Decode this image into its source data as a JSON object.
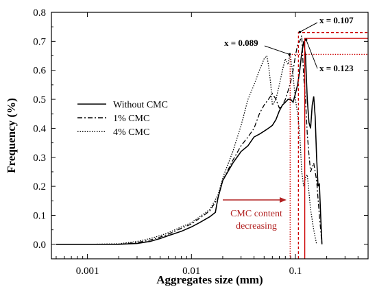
{
  "chart_data": {
    "type": "line",
    "xlabel": "Aggregates size (mm)",
    "ylabel": "Frequency (%)",
    "xscale": "log",
    "xlim": [
      0.00045,
      0.5
    ],
    "ylim": [
      -0.05,
      0.8
    ],
    "x_ticks": [
      {
        "value": 0.001,
        "label": "0.001"
      },
      {
        "value": 0.01,
        "label": "0.01"
      },
      {
        "value": 0.1,
        "label": "0.1"
      }
    ],
    "y_ticks": [
      {
        "value": 0.0,
        "label": "0.0"
      },
      {
        "value": 0.1,
        "label": "0.1"
      },
      {
        "value": 0.2,
        "label": "0.2"
      },
      {
        "value": 0.3,
        "label": "0.3"
      },
      {
        "value": 0.4,
        "label": "0.4"
      },
      {
        "value": 0.5,
        "label": "0.5"
      },
      {
        "value": 0.6,
        "label": "0.6"
      },
      {
        "value": 0.7,
        "label": "0.7"
      },
      {
        "value": 0.8,
        "label": "0.8"
      }
    ],
    "legend_position": "center-left",
    "series": [
      {
        "name": "Without CMC",
        "style": "solid",
        "x": [
          0.0005,
          0.001,
          0.002,
          0.003,
          0.004,
          0.005,
          0.006,
          0.008,
          0.01,
          0.012,
          0.015,
          0.017,
          0.018,
          0.02,
          0.025,
          0.03,
          0.035,
          0.04,
          0.045,
          0.05,
          0.055,
          0.06,
          0.065,
          0.07,
          0.075,
          0.08,
          0.085,
          0.09,
          0.095,
          0.1,
          0.105,
          0.11,
          0.115,
          0.12,
          0.125,
          0.13,
          0.135,
          0.14,
          0.145,
          0.15,
          0.155,
          0.16,
          0.165,
          0.17,
          0.175,
          0.18
        ],
        "values": [
          0.0,
          0.0,
          0.0,
          0.003,
          0.01,
          0.02,
          0.03,
          0.045,
          0.06,
          0.075,
          0.095,
          0.11,
          0.16,
          0.22,
          0.28,
          0.32,
          0.34,
          0.37,
          0.38,
          0.39,
          0.4,
          0.41,
          0.43,
          0.46,
          0.48,
          0.49,
          0.5,
          0.5,
          0.49,
          0.52,
          0.55,
          0.6,
          0.66,
          0.7,
          0.65,
          0.5,
          0.42,
          0.4,
          0.48,
          0.51,
          0.44,
          0.3,
          0.2,
          0.21,
          0.1,
          0.0
        ]
      },
      {
        "name": "1% CMC",
        "style": "dashdot",
        "x": [
          0.0005,
          0.001,
          0.002,
          0.003,
          0.004,
          0.005,
          0.006,
          0.008,
          0.01,
          0.012,
          0.015,
          0.018,
          0.02,
          0.025,
          0.03,
          0.035,
          0.04,
          0.045,
          0.05,
          0.055,
          0.06,
          0.065,
          0.07,
          0.075,
          0.08,
          0.085,
          0.09,
          0.095,
          0.1,
          0.105,
          0.11,
          0.115,
          0.12,
          0.125,
          0.13,
          0.135,
          0.14,
          0.15,
          0.16,
          0.17,
          0.18
        ],
        "values": [
          0.0,
          0.0,
          0.0,
          0.006,
          0.015,
          0.025,
          0.035,
          0.055,
          0.07,
          0.09,
          0.115,
          0.16,
          0.22,
          0.29,
          0.34,
          0.37,
          0.4,
          0.45,
          0.48,
          0.5,
          0.52,
          0.5,
          0.47,
          0.48,
          0.5,
          0.53,
          0.56,
          0.6,
          0.65,
          0.69,
          0.7,
          0.72,
          0.58,
          0.5,
          0.38,
          0.31,
          0.25,
          0.28,
          0.22,
          0.1,
          0.0
        ]
      },
      {
        "name": "4% CMC",
        "style": "dotted",
        "x": [
          0.0005,
          0.001,
          0.002,
          0.003,
          0.004,
          0.005,
          0.006,
          0.008,
          0.01,
          0.012,
          0.015,
          0.018,
          0.02,
          0.025,
          0.03,
          0.035,
          0.04,
          0.045,
          0.05,
          0.053,
          0.055,
          0.058,
          0.06,
          0.065,
          0.07,
          0.075,
          0.08,
          0.085,
          0.089,
          0.095,
          0.1,
          0.105,
          0.11,
          0.115,
          0.12,
          0.125,
          0.13,
          0.14,
          0.15,
          0.16
        ],
        "values": [
          0.0,
          0.0,
          0.002,
          0.01,
          0.02,
          0.03,
          0.04,
          0.06,
          0.075,
          0.095,
          0.12,
          0.17,
          0.23,
          0.32,
          0.41,
          0.5,
          0.55,
          0.6,
          0.64,
          0.65,
          0.62,
          0.55,
          0.48,
          0.5,
          0.55,
          0.6,
          0.64,
          0.62,
          0.66,
          0.58,
          0.5,
          0.45,
          0.38,
          0.25,
          0.2,
          0.23,
          0.24,
          0.12,
          0.05,
          0.0
        ]
      }
    ],
    "reference_lines": [
      {
        "label": "x = 0.089",
        "x": 0.089,
        "y": 0.655,
        "style": "dotted"
      },
      {
        "label": "x = 0.107",
        "x": 0.107,
        "y": 0.73,
        "style": "dashed"
      },
      {
        "label": "x = 0.123",
        "x": 0.123,
        "y": 0.71,
        "style": "solid"
      }
    ],
    "annotations": {
      "cmc_line1": "CMC content",
      "cmc_line2": "decreasing"
    },
    "colors": {
      "series": "#000000",
      "reference": "#cc0000",
      "annotation_text": "#b22222"
    }
  }
}
